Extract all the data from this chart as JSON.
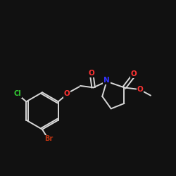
{
  "background": "#111111",
  "bond_color": "#d8d8d8",
  "atom_colors": {
    "O": "#ff3333",
    "N": "#3333ff",
    "Cl": "#33cc33",
    "Br": "#bb3311",
    "C": "#d8d8d8"
  },
  "figsize": [
    2.5,
    2.5
  ],
  "dpi": 100
}
